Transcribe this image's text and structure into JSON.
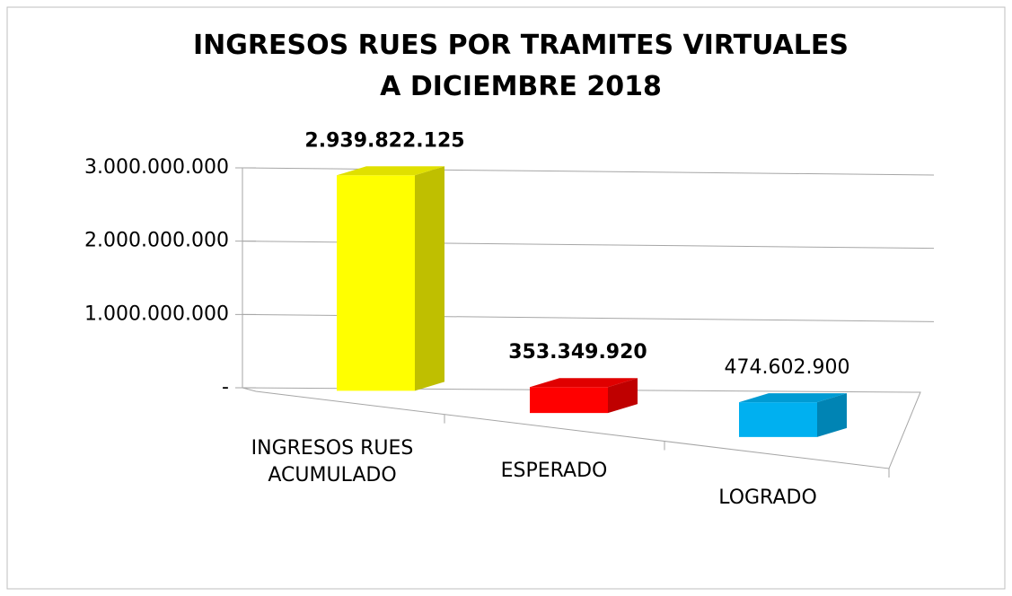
{
  "chart_data": {
    "type": "bar3d",
    "title": "INGRESOS RUES POR TRAMITES VIRTUALES A DICIEMBRE 2018",
    "categories": [
      "INGRESOS RUES ACUMULADO",
      "ESPERADO",
      "LOGRADO"
    ],
    "values": [
      2939822125,
      353349920,
      474602900
    ],
    "value_labels": [
      "2.939.822.125",
      "353.349.920",
      "474.602.900"
    ],
    "value_label_bold": [
      true,
      true,
      false
    ],
    "colors": [
      "#ffff00",
      "#ff0000",
      "#00b0f0"
    ],
    "ylim": [
      0,
      3000000000
    ],
    "yticks": [
      {
        "value": 0,
        "label": "-"
      },
      {
        "value": 1000000000,
        "label": "1.000.000.000"
      },
      {
        "value": 2000000000,
        "label": "2.000.000.000"
      },
      {
        "value": 3000000000,
        "label": "3.000.000.000"
      }
    ],
    "grid": true
  }
}
